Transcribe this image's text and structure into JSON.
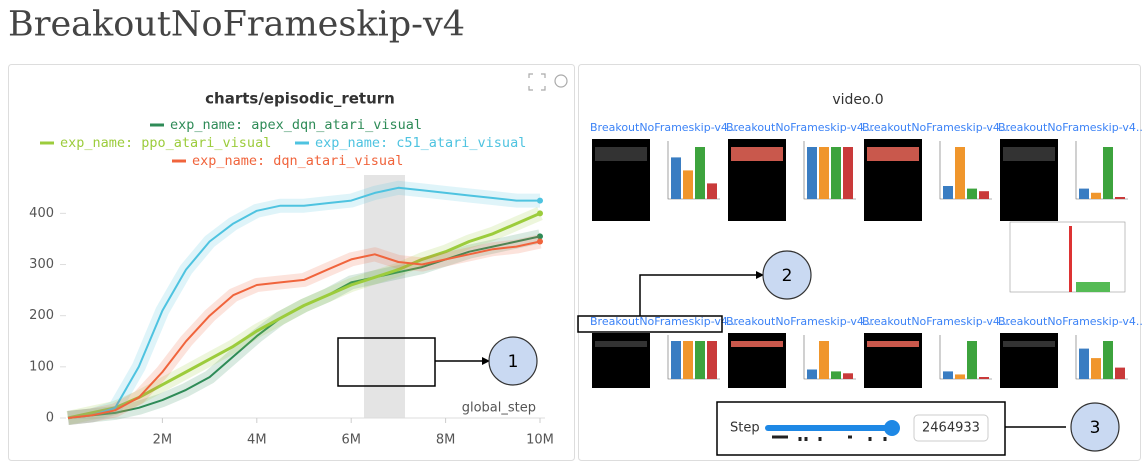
{
  "title": "BreakoutNoFrameskip-v4",
  "chart_data": {
    "type": "line",
    "title": "charts/episodic_return",
    "x_label": "global_step",
    "x": [
      0,
      500000,
      1000000,
      1500000,
      2000000,
      2500000,
      3000000,
      3500000,
      4000000,
      4500000,
      5000000,
      5500000,
      6000000,
      6500000,
      7000000,
      7500000,
      8000000,
      8500000,
      9000000,
      9500000,
      10000000
    ],
    "series": [
      {
        "name": "exp_name: apex_dqn_atari_visual",
        "color": "#2e8b57",
        "values": [
          0,
          5,
          10,
          20,
          35,
          55,
          80,
          120,
          160,
          195,
          220,
          240,
          265,
          275,
          285,
          295,
          310,
          325,
          335,
          345,
          355
        ]
      },
      {
        "name": "exp_name: ppo_atari_visual",
        "color": "#9ccc3c",
        "values": [
          0,
          10,
          20,
          40,
          65,
          90,
          115,
          140,
          170,
          195,
          220,
          240,
          260,
          275,
          290,
          310,
          325,
          345,
          360,
          380,
          400
        ]
      },
      {
        "name": "exp_name: c51_atari_visual",
        "color": "#4ec3e0",
        "values": [
          0,
          5,
          20,
          100,
          210,
          290,
          345,
          380,
          405,
          415,
          415,
          420,
          425,
          440,
          450,
          445,
          440,
          435,
          430,
          425,
          425
        ]
      },
      {
        "name": "exp_name: dqn_atari_visual",
        "color": "#f0643c",
        "values": [
          0,
          5,
          15,
          40,
          90,
          150,
          200,
          240,
          260,
          265,
          270,
          290,
          310,
          320,
          305,
          300,
          310,
          320,
          330,
          335,
          345
        ]
      }
    ],
    "xlim": [
      0,
      10000000
    ],
    "ylim": [
      0,
      475
    ],
    "xticks": [
      {
        "value": 2000000,
        "label": "2M"
      },
      {
        "value": 4000000,
        "label": "4M"
      },
      {
        "value": 6000000,
        "label": "6M"
      },
      {
        "value": 8000000,
        "label": "8M"
      },
      {
        "value": 10000000,
        "label": "10M"
      }
    ],
    "yticks": [
      0,
      100,
      200,
      300,
      400
    ],
    "grid": false
  },
  "video_panel": {
    "title": "video.0",
    "clips": [
      "BreakoutNoFrameskip-v4...",
      "BreakoutNoFrameskip-v4...",
      "BreakoutNoFrameskip-v4...",
      "BreakoutNoFrameskip-v4...",
      "BreakoutNoFrameskip-v4...",
      "BreakoutNoFrameskip-v4...",
      "BreakoutNoFrameskip-v4...",
      "BreakoutNoFrameskip-v4..."
    ],
    "step_label": "Step",
    "step_value": "2464933"
  },
  "annotations": [
    "1",
    "2",
    "3"
  ]
}
